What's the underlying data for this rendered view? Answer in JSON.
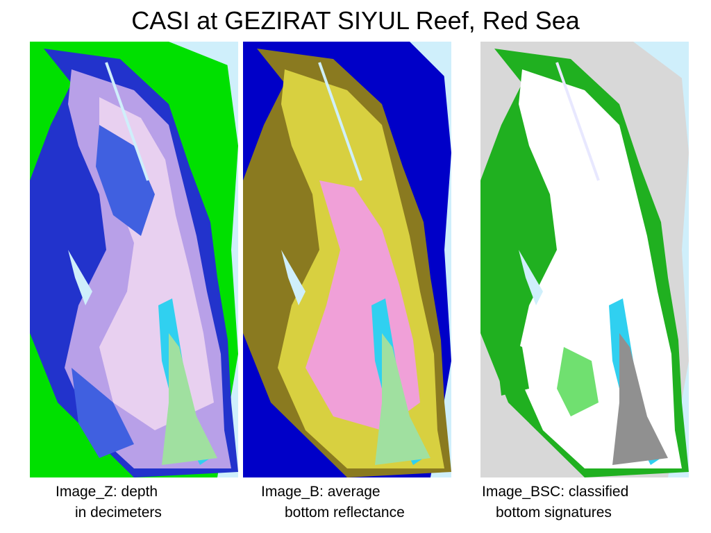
{
  "page": {
    "title": "CASI at GEZIRAT SIYUL Reef, Red Sea"
  },
  "panels": [
    {
      "id": "image-z",
      "caption_line1": "Image_Z:  depth",
      "caption_line2": "in decimeters",
      "colors": {
        "background": "#cfeffb",
        "deep": "#00e000",
        "shelf": "#2233cc",
        "reef": "#b8a0e8",
        "flat": "#e8d0f0",
        "lagoon": "#4060e0",
        "channel": "#30d0f0",
        "sand": "#a0e0a0"
      }
    },
    {
      "id": "image-b",
      "caption_line1": "Image_B: average",
      "caption_line2": "bottom reflectance",
      "colors": {
        "background": "#cfeffb",
        "deep": "#0000c8",
        "shelf": "#0000c8",
        "reef": "#8a7a20",
        "flat": "#f0a0d8",
        "lagoon": "#d8d040",
        "channel": "#30d0f0",
        "sand": "#a0e0a0"
      }
    },
    {
      "id": "image-bsc",
      "caption_line1": "Image_BSC: classified",
      "caption_line2": "bottom signatures",
      "colors": {
        "background": "#cfeffb",
        "deep": "#d8d8d8",
        "shelf": "#ffffff",
        "reef": "#20b020",
        "flat": "#ffffff",
        "lagoon": "#70e070",
        "channel": "#30d0f0",
        "sand": "#909090"
      }
    }
  ]
}
